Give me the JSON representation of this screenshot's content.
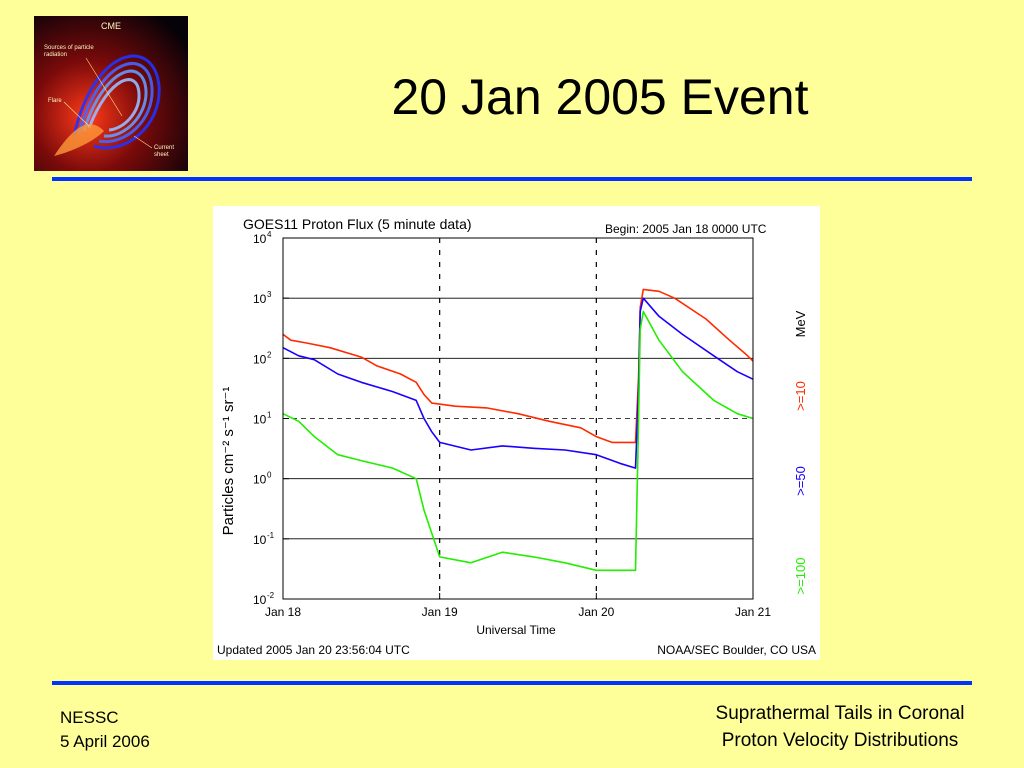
{
  "slide": {
    "title": "20 Jan 2005 Event",
    "footer_left_line1": "NESSC",
    "footer_left_line2": "5 April 2006",
    "footer_right_line1": "Suprathermal Tails in Coronal",
    "footer_right_line2": "Proton Velocity Distributions",
    "accent_color": "#0033ff",
    "background_color": "#ffff99"
  },
  "logo": {
    "heading": "CME",
    "label_sources": "Sources of particle",
    "label_sources2": "radiation",
    "label_flare": "Flare",
    "label_current": "Current",
    "label_current2": "sheet"
  },
  "chart_data": {
    "type": "line",
    "title": "GOES11 Proton Flux (5 minute data)",
    "begin_label": "Begin: 2005 Jan 18 0000 UTC",
    "xlabel": "Universal Time",
    "ylabel": "Particles cm⁻² s⁻¹ sr⁻¹",
    "footer_left": "Updated 2005 Jan 20 23:56:04 UTC",
    "footer_right": "NOAA/SEC Boulder, CO USA",
    "unit_label": "MeV",
    "y_scale": "log",
    "ylim": [
      0.01,
      10000
    ],
    "xlim_days": [
      18,
      21
    ],
    "x_ticks": [
      "Jan 18",
      "Jan 19",
      "Jan 20",
      "Jan 21"
    ],
    "y_ticks": [
      {
        "base": "10",
        "exp": "4"
      },
      {
        "base": "10",
        "exp": "3"
      },
      {
        "base": "10",
        "exp": "2"
      },
      {
        "base": "10",
        "exp": "1"
      },
      {
        "base": "10",
        "exp": "0"
      },
      {
        "base": "10",
        "exp": "-1"
      },
      {
        "base": "10",
        "exp": "-2"
      }
    ],
    "threshold_line": 10,
    "series": [
      {
        "name": ">=10",
        "color": "#ff2a00",
        "points": [
          [
            18.0,
            250
          ],
          [
            18.05,
            200
          ],
          [
            18.15,
            180
          ],
          [
            18.3,
            150
          ],
          [
            18.5,
            105
          ],
          [
            18.6,
            75
          ],
          [
            18.75,
            55
          ],
          [
            18.85,
            40
          ],
          [
            18.9,
            25
          ],
          [
            18.95,
            18
          ],
          [
            19.1,
            16
          ],
          [
            19.3,
            15
          ],
          [
            19.5,
            12
          ],
          [
            19.7,
            9
          ],
          [
            19.9,
            7
          ],
          [
            20.0,
            5
          ],
          [
            20.1,
            4
          ],
          [
            20.25,
            4
          ],
          [
            20.27,
            50
          ],
          [
            20.28,
            700
          ],
          [
            20.3,
            1400
          ],
          [
            20.4,
            1300
          ],
          [
            20.5,
            1000
          ],
          [
            20.7,
            450
          ],
          [
            20.85,
            200
          ],
          [
            20.95,
            120
          ],
          [
            21.0,
            90
          ]
        ]
      },
      {
        "name": ">=50",
        "color": "#1a00ff",
        "points": [
          [
            18.0,
            150
          ],
          [
            18.1,
            110
          ],
          [
            18.2,
            95
          ],
          [
            18.35,
            55
          ],
          [
            18.5,
            40
          ],
          [
            18.7,
            28
          ],
          [
            18.85,
            20
          ],
          [
            18.9,
            10
          ],
          [
            18.95,
            6
          ],
          [
            19.0,
            4
          ],
          [
            19.2,
            3
          ],
          [
            19.4,
            3.5
          ],
          [
            19.6,
            3.2
          ],
          [
            19.8,
            3
          ],
          [
            20.0,
            2.5
          ],
          [
            20.15,
            1.8
          ],
          [
            20.25,
            1.5
          ],
          [
            20.27,
            30
          ],
          [
            20.28,
            600
          ],
          [
            20.3,
            1000
          ],
          [
            20.4,
            500
          ],
          [
            20.55,
            250
          ],
          [
            20.75,
            110
          ],
          [
            20.9,
            60
          ],
          [
            21.0,
            45
          ]
        ]
      },
      {
        "name": ">=100",
        "color": "#22ee00",
        "points": [
          [
            18.0,
            12
          ],
          [
            18.1,
            9
          ],
          [
            18.2,
            5
          ],
          [
            18.35,
            2.5
          ],
          [
            18.5,
            2
          ],
          [
            18.7,
            1.5
          ],
          [
            18.85,
            1
          ],
          [
            18.9,
            0.3
          ],
          [
            19.0,
            0.05
          ],
          [
            19.2,
            0.04
          ],
          [
            19.4,
            0.06
          ],
          [
            19.6,
            0.05
          ],
          [
            19.8,
            0.04
          ],
          [
            20.0,
            0.03
          ],
          [
            20.15,
            0.03
          ],
          [
            20.25,
            0.03
          ],
          [
            20.27,
            10
          ],
          [
            20.28,
            300
          ],
          [
            20.3,
            600
          ],
          [
            20.4,
            200
          ],
          [
            20.55,
            60
          ],
          [
            20.75,
            20
          ],
          [
            20.9,
            12
          ],
          [
            21.0,
            10
          ]
        ]
      }
    ]
  }
}
